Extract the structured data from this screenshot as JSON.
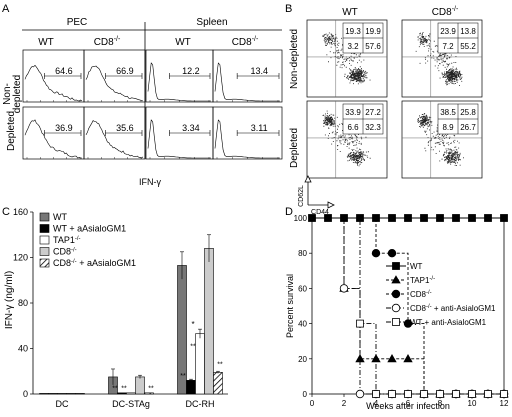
{
  "panelA": {
    "letter": "A",
    "group_pec": "PEC",
    "group_spleen": "Spleen",
    "cols": [
      "WT",
      "CD8",
      "WT",
      "CD8"
    ],
    "sup": "-/-",
    "rows": [
      "Non-\ndepleted",
      "Depleted"
    ],
    "row1": "Non-",
    "row1b": "depleted",
    "row2": "Depleted",
    "values_top": [
      "64.6",
      "66.9",
      "12.2",
      "13.4"
    ],
    "values_bottom": [
      "36.9",
      "35.6",
      "3.34",
      "3.11"
    ],
    "xlabel": "IFN-γ"
  },
  "panelB": {
    "letter": "B",
    "cols": [
      "WT",
      "CD8"
    ],
    "sup": "-/-",
    "row1": "Non-depleted",
    "row2": "Depleted",
    "quad": [
      [
        "19.3",
        "19.9",
        "3.2",
        "57.6"
      ],
      [
        "23.9",
        "13.8",
        "7.2",
        "55.2"
      ],
      [
        "33.9",
        "27.2",
        "6.6",
        "32.3"
      ],
      [
        "38.5",
        "25.8",
        "8.9",
        "26.7"
      ]
    ],
    "axis_y": "CD62L",
    "axis_x": "CD44"
  },
  "panelC": {
    "letter": "C",
    "legend": [
      "WT",
      "WT + aAsialoGM1",
      "TAP1",
      "CD8",
      "CD8"
    ],
    "legend_sup": [
      "",
      "",
      "-/-",
      "-/-",
      "-/-"
    ],
    "legend_suffix": [
      "",
      "",
      "",
      "",
      " + aAsialoGM1"
    ],
    "ylabel": "IFN-γ (ng/ml)",
    "star": "*",
    "dstar": "**"
  },
  "chart_data": [
    {
      "type": "bar",
      "categories": [
        "DC",
        "DC-STAg",
        "DC-RH"
      ],
      "series": [
        {
          "name": "WT",
          "values": [
            0.5,
            15,
            113
          ],
          "err": [
            0.3,
            7,
            12
          ]
        },
        {
          "name": "WT + aAsialoGM1",
          "values": [
            0.5,
            1,
            12
          ],
          "err": [
            0.2,
            0.5,
            1
          ]
        },
        {
          "name": "TAP1-/-",
          "values": [
            0.5,
            1,
            53
          ],
          "err": [
            0.2,
            0.5,
            4
          ]
        },
        {
          "name": "CD8-/-",
          "values": [
            0.5,
            15,
            128
          ],
          "err": [
            0.2,
            1.5,
            12
          ]
        },
        {
          "name": "CD8-/- + aAsialoGM1",
          "values": [
            0.5,
            1,
            19
          ],
          "err": [
            0.2,
            0.5,
            1
          ]
        }
      ],
      "ylabel": "IFN-γ (ng/ml)",
      "ylim": [
        0,
        160
      ],
      "yticks": [
        0,
        40,
        80,
        120,
        160
      ]
    },
    {
      "type": "line",
      "xlabel": "Weeks after infection",
      "ylabel": "Percent survival",
      "xlim": [
        0,
        12
      ],
      "ylim": [
        0,
        100
      ],
      "xticks": [
        0,
        2,
        4,
        6,
        8,
        10,
        12
      ],
      "yticks": [
        0,
        20,
        40,
        60,
        80,
        100
      ],
      "series": [
        {
          "name": "WT",
          "x": [
            0,
            12
          ],
          "y": [
            100,
            100
          ]
        },
        {
          "name": "TAP1-/-",
          "x": [
            0,
            2,
            3,
            4,
            5,
            6,
            7,
            7,
            12
          ],
          "y": [
            100,
            60,
            20,
            20,
            20,
            20,
            20,
            0,
            0
          ]
        },
        {
          "name": "CD8-/-",
          "x": [
            0,
            3,
            4,
            5,
            6,
            6,
            7,
            12
          ],
          "y": [
            100,
            100,
            80,
            80,
            40,
            40,
            0,
            0
          ]
        },
        {
          "name": "CD8-/- + anti-AsialoGM1",
          "x": [
            0,
            2,
            3,
            12
          ],
          "y": [
            100,
            60,
            0,
            0
          ]
        },
        {
          "name": "WT + anti-AsialoGM1",
          "x": [
            0,
            3,
            4,
            12
          ],
          "y": [
            100,
            40,
            0,
            0
          ]
        }
      ]
    }
  ],
  "panelD": {
    "letter": "D",
    "legend": [
      "WT",
      "TAP1",
      "CD8",
      "CD8",
      "WT + anti-AsialoGM1"
    ],
    "legend_sup": [
      "",
      "-/-",
      "-/-",
      "-/-",
      ""
    ],
    "legend_suffix": [
      "",
      "",
      "",
      " + anti-AsialoGM1",
      ""
    ]
  }
}
